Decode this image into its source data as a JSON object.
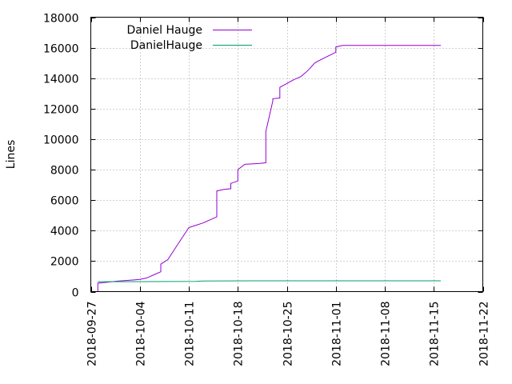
{
  "chart_data": {
    "type": "line",
    "title": "",
    "xlabel": "",
    "ylabel": "Lines",
    "xlim": [
      "2018-09-27",
      "2018-11-22"
    ],
    "ylim": [
      0,
      18000
    ],
    "x_ticks": [
      "2018-09-27",
      "2018-10-04",
      "2018-10-11",
      "2018-10-18",
      "2018-10-25",
      "2018-11-01",
      "2018-11-08",
      "2018-11-15",
      "2018-11-22"
    ],
    "y_ticks": [
      "0",
      "2000",
      "4000",
      "6000",
      "8000",
      "10000",
      "12000",
      "14000",
      "16000",
      "18000"
    ],
    "grid": true,
    "legend_position": "top-left",
    "series": [
      {
        "name": "Daniel Hauge",
        "color": "#9400d3",
        "points": [
          [
            "2018-09-28",
            0
          ],
          [
            "2018-09-28",
            550
          ],
          [
            "2018-09-29",
            600
          ],
          [
            "2018-09-30",
            650
          ],
          [
            "2018-10-01",
            700
          ],
          [
            "2018-10-02",
            730
          ],
          [
            "2018-10-03",
            760
          ],
          [
            "2018-10-04",
            800
          ],
          [
            "2018-10-05",
            900
          ],
          [
            "2018-10-06",
            1100
          ],
          [
            "2018-10-07",
            1300
          ],
          [
            "2018-10-07",
            1800
          ],
          [
            "2018-10-08",
            2100
          ],
          [
            "2018-10-09",
            2800
          ],
          [
            "2018-10-11",
            4200
          ],
          [
            "2018-10-12",
            4350
          ],
          [
            "2018-10-13",
            4500
          ],
          [
            "2018-10-14",
            4700
          ],
          [
            "2018-10-15",
            4900
          ],
          [
            "2018-10-15",
            6600
          ],
          [
            "2018-10-16",
            6700
          ],
          [
            "2018-10-17",
            6750
          ],
          [
            "2018-10-17",
            7100
          ],
          [
            "2018-10-18",
            7250
          ],
          [
            "2018-10-18",
            8000
          ],
          [
            "2018-10-19",
            8350
          ],
          [
            "2018-10-21",
            8400
          ],
          [
            "2018-10-22",
            8450
          ],
          [
            "2018-10-22",
            10500
          ],
          [
            "2018-10-23",
            12500
          ],
          [
            "2018-10-23",
            12650
          ],
          [
            "2018-10-24",
            12700
          ],
          [
            "2018-10-24",
            13400
          ],
          [
            "2018-10-26",
            13900
          ],
          [
            "2018-10-27",
            14100
          ],
          [
            "2018-10-28",
            14500
          ],
          [
            "2018-10-29",
            15000
          ],
          [
            "2018-10-30",
            15250
          ],
          [
            "2018-11-01",
            15700
          ],
          [
            "2018-11-01",
            16050
          ],
          [
            "2018-11-02",
            16150
          ],
          [
            "2018-11-16",
            16150
          ]
        ]
      },
      {
        "name": "DanielHauge",
        "color": "#009e73",
        "points": [
          [
            "2018-09-28",
            650
          ],
          [
            "2018-10-01",
            650
          ],
          [
            "2018-10-12",
            670
          ],
          [
            "2018-10-13",
            700
          ],
          [
            "2018-10-20",
            710
          ],
          [
            "2018-11-16",
            710
          ]
        ]
      }
    ]
  }
}
